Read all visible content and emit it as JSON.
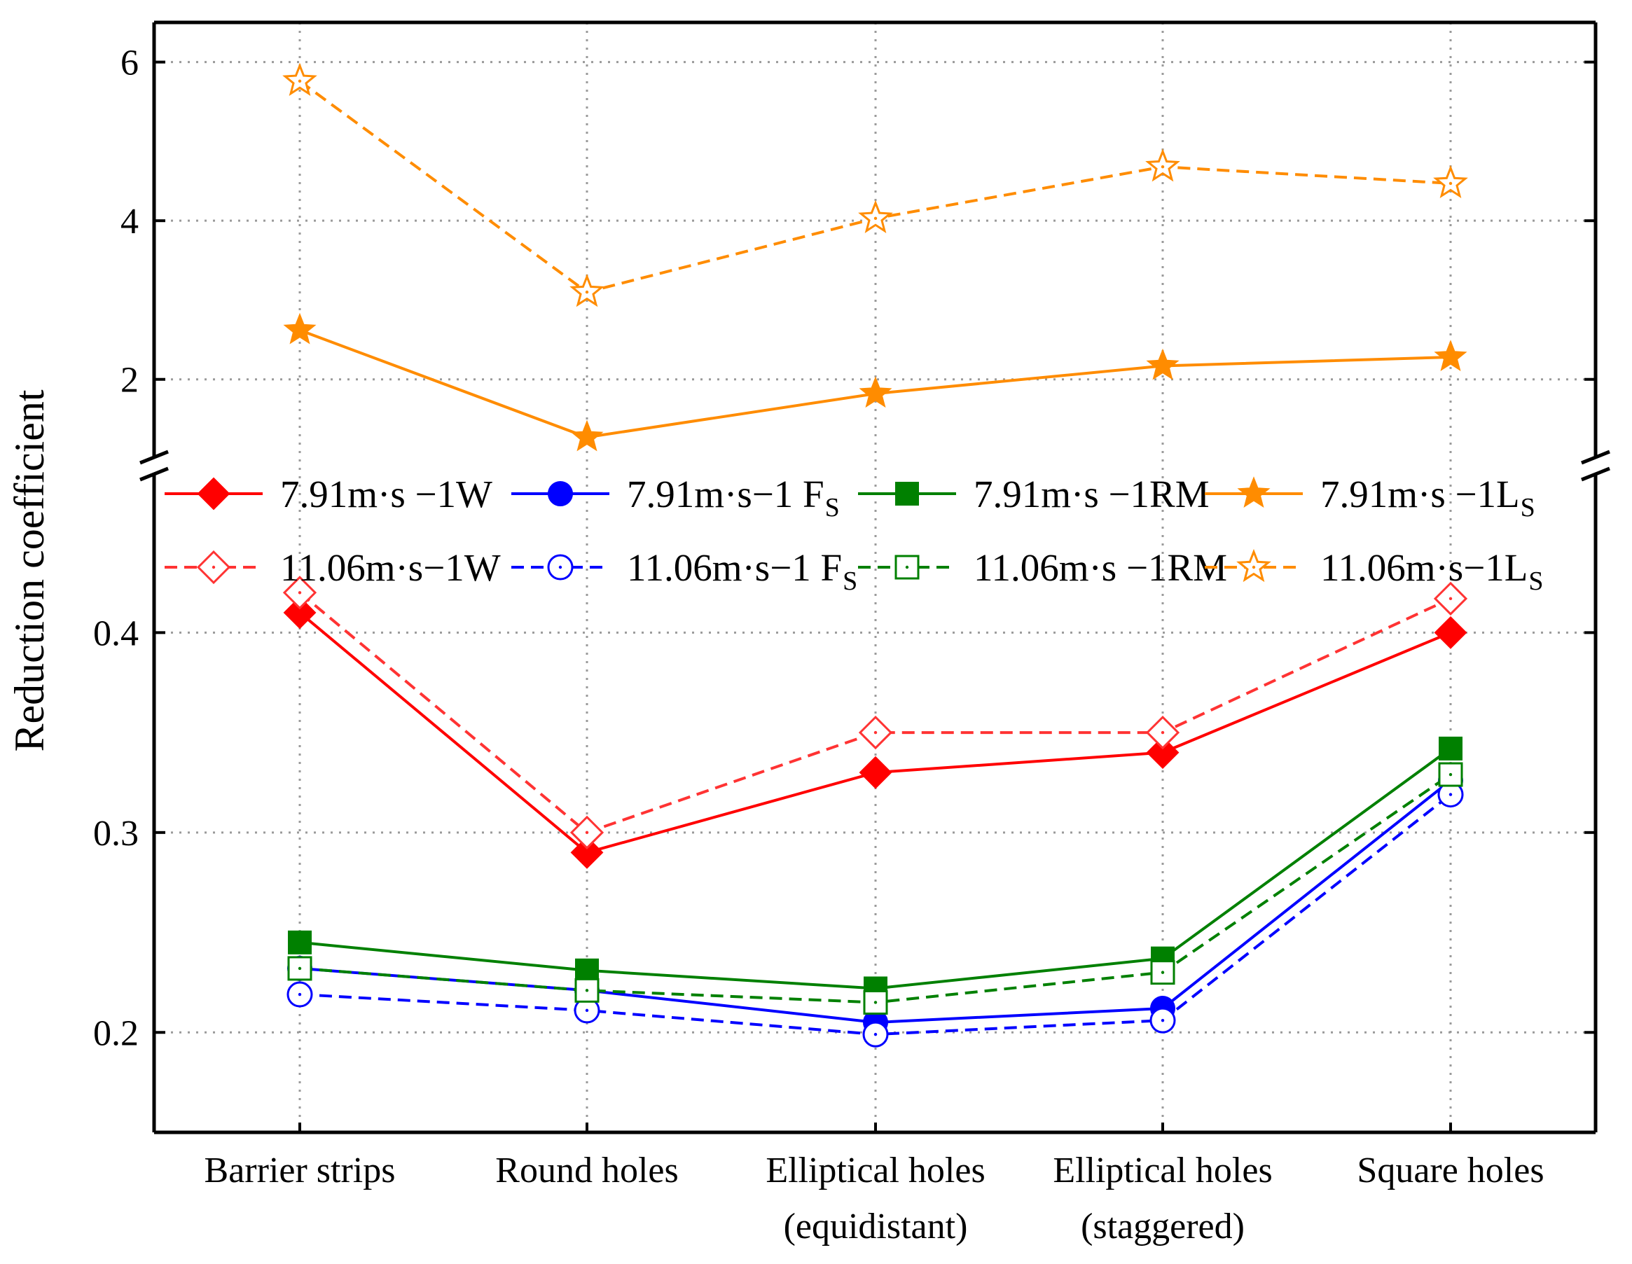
{
  "chart_data": {
    "type": "line",
    "ylabel": "Reduction coefficient",
    "categories": [
      [
        "Barrier strips"
      ],
      [
        "Round holes"
      ],
      [
        "Elliptical holes",
        "(equidistant)"
      ],
      [
        "Elliptical holes",
        "(staggered)"
      ],
      [
        "Square holes"
      ]
    ],
    "y_axis_break": true,
    "upper_panel": {
      "ylim": [
        1.0,
        6.5
      ],
      "yticks": [
        2,
        4,
        6
      ],
      "ytick_labels": [
        "2",
        "4",
        "6"
      ]
    },
    "lower_panel": {
      "ylim": [
        0.15,
        0.48
      ],
      "yticks": [
        0.2,
        0.3,
        0.4
      ],
      "ytick_labels": [
        "0.2",
        "0.3",
        "0.4"
      ]
    },
    "grid": true,
    "legend_placement": "inside, between the two panels, 4 columns x 2 rows",
    "series": [
      {
        "name": "7.91m·s −1W",
        "label_main": "7.91m·s −1W",
        "label_sub": "",
        "panel": "lower",
        "color": "#ff0000",
        "marker": "diamond",
        "filled": true,
        "dashed": false,
        "values": [
          0.41,
          0.29,
          0.33,
          0.34,
          0.4
        ]
      },
      {
        "name": "7.91m·s−1 FS",
        "label_main": "7.91m·s−1 F",
        "label_sub": "S",
        "panel": "lower",
        "color": "#0000ff",
        "marker": "circle",
        "filled": true,
        "dashed": false,
        "values": [
          0.232,
          0.221,
          0.205,
          0.212,
          0.326
        ]
      },
      {
        "name": "7.91m·s −1RM",
        "label_main": "7.91m·s −1RM",
        "label_sub": "",
        "panel": "lower",
        "color": "#008000",
        "marker": "square",
        "filled": true,
        "dashed": false,
        "values": [
          0.245,
          0.231,
          0.222,
          0.237,
          0.342
        ]
      },
      {
        "name": "7.91m·s −1LS",
        "label_main": "7.91m·s −1L",
        "label_sub": "S",
        "panel": "upper",
        "color": "#ff8c00",
        "marker": "star",
        "filled": true,
        "dashed": false,
        "values": [
          2.62,
          1.27,
          1.82,
          2.17,
          2.28
        ]
      },
      {
        "name": "11.06m·s−1W",
        "label_main": "11.06m·s−1W",
        "label_sub": "",
        "panel": "lower",
        "color": "#ff3333",
        "marker": "diamond",
        "filled": false,
        "dashed": true,
        "values": [
          0.42,
          0.3,
          0.35,
          0.35,
          0.417
        ]
      },
      {
        "name": "11.06m·s−1 FS",
        "label_main": "11.06m·s−1 F",
        "label_sub": "S",
        "panel": "lower",
        "color": "#0000ff",
        "marker": "circle",
        "filled": false,
        "dashed": true,
        "values": [
          0.219,
          0.211,
          0.199,
          0.206,
          0.319
        ]
      },
      {
        "name": "11.06m·s −1RM",
        "label_main": "11.06m·s −1RM",
        "label_sub": "",
        "panel": "lower",
        "color": "#008000",
        "marker": "square",
        "filled": false,
        "dashed": true,
        "values": [
          0.232,
          0.221,
          0.215,
          0.23,
          0.329
        ]
      },
      {
        "name": "11.06m·s−1LS",
        "label_main": "11.06m·s−1L",
        "label_sub": "S",
        "panel": "upper",
        "color": "#ff8c00",
        "marker": "star",
        "filled": false,
        "dashed": true,
        "values": [
          5.76,
          3.1,
          4.03,
          4.68,
          4.47
        ]
      }
    ]
  }
}
